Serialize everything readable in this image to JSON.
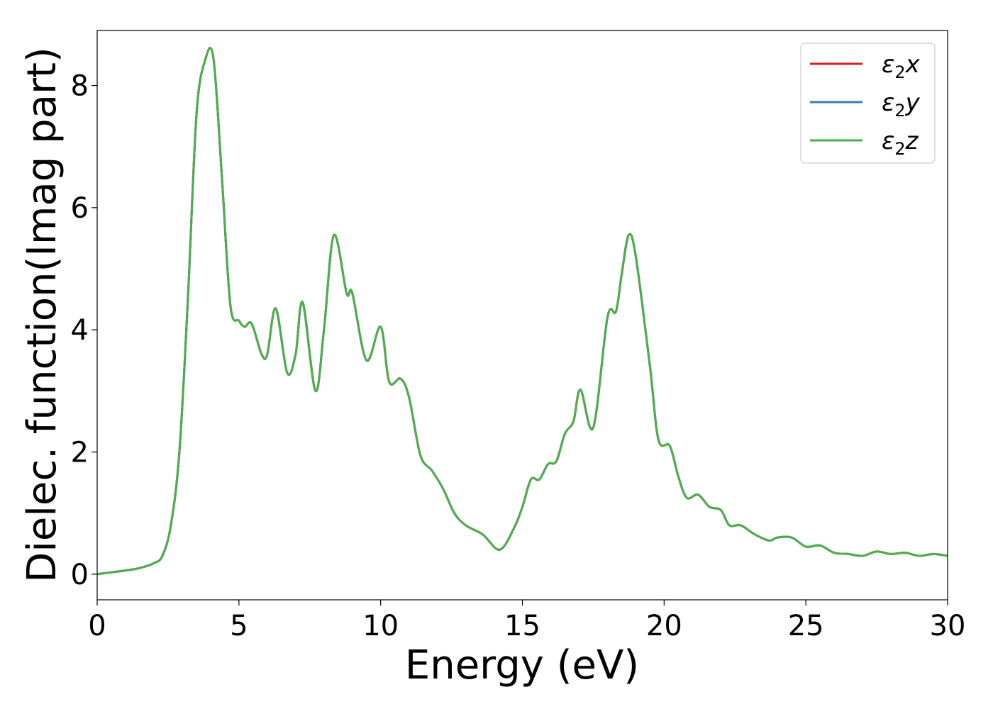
{
  "chart_data": {
    "type": "line",
    "title": "",
    "xlabel": "Energy (eV)",
    "ylabel": "Dielec. function(Imag part)",
    "xlim": [
      0,
      30
    ],
    "ylim": [
      -0.42,
      8.9
    ],
    "xticks": [
      0,
      5,
      10,
      15,
      20,
      25,
      30
    ],
    "yticks": [
      0,
      2,
      4,
      6,
      8
    ],
    "grid": false,
    "legend_position": "top-right",
    "x": [
      0,
      0.5,
      1,
      1.5,
      2,
      2.3,
      2.6,
      2.9,
      3.2,
      3.5,
      3.8,
      4.1,
      4.4,
      4.7,
      5.0,
      5.2,
      5.45,
      5.8,
      6.0,
      6.3,
      6.7,
      7.0,
      7.25,
      7.7,
      8.0,
      8.35,
      8.8,
      9.0,
      9.5,
      10.0,
      10.3,
      10.7,
      11.0,
      11.4,
      11.8,
      12.2,
      12.6,
      13.0,
      13.6,
      14.2,
      14.7,
      15.0,
      15.3,
      15.6,
      15.9,
      16.2,
      16.5,
      16.8,
      17.05,
      17.5,
      18.0,
      18.3,
      18.5,
      18.75,
      19.0,
      19.5,
      19.8,
      20.2,
      20.5,
      20.8,
      21.2,
      21.6,
      22.0,
      22.3,
      22.7,
      23.2,
      23.7,
      24.0,
      24.5,
      25.0,
      25.5,
      26.0,
      26.5,
      27.0,
      27.5,
      28.0,
      28.5,
      29.0,
      29.5,
      30.0
    ],
    "series": [
      {
        "name": "ε₂x",
        "label_base": "ε",
        "label_sub": "2",
        "label_var": "x",
        "color": "#e41a1c",
        "values": [
          0.0,
          0.03,
          0.06,
          0.1,
          0.18,
          0.3,
          0.8,
          2.0,
          4.5,
          7.5,
          8.4,
          8.45,
          6.5,
          4.4,
          4.15,
          4.05,
          4.1,
          3.6,
          3.6,
          4.35,
          3.3,
          3.6,
          4.45,
          3.0,
          4.0,
          5.55,
          4.6,
          4.6,
          3.5,
          4.05,
          3.15,
          3.2,
          2.9,
          1.95,
          1.7,
          1.4,
          1.0,
          0.8,
          0.65,
          0.4,
          0.75,
          1.1,
          1.55,
          1.55,
          1.8,
          1.85,
          2.3,
          2.5,
          3.02,
          2.4,
          4.2,
          4.3,
          4.9,
          5.55,
          5.2,
          3.4,
          2.2,
          2.1,
          1.6,
          1.25,
          1.3,
          1.1,
          1.05,
          0.8,
          0.8,
          0.65,
          0.55,
          0.6,
          0.6,
          0.45,
          0.47,
          0.35,
          0.33,
          0.3,
          0.37,
          0.33,
          0.35,
          0.3,
          0.33,
          0.3
        ]
      },
      {
        "name": "ε₂y",
        "label_base": "ε",
        "label_sub": "2",
        "label_var": "y",
        "color": "#377eb8",
        "values": [
          0.0,
          0.03,
          0.06,
          0.1,
          0.18,
          0.3,
          0.8,
          2.0,
          4.5,
          7.5,
          8.4,
          8.45,
          6.5,
          4.4,
          4.15,
          4.05,
          4.1,
          3.6,
          3.6,
          4.35,
          3.3,
          3.6,
          4.45,
          3.0,
          4.0,
          5.55,
          4.6,
          4.6,
          3.5,
          4.05,
          3.15,
          3.2,
          2.9,
          1.95,
          1.7,
          1.4,
          1.0,
          0.8,
          0.65,
          0.4,
          0.75,
          1.1,
          1.55,
          1.55,
          1.8,
          1.85,
          2.3,
          2.5,
          3.02,
          2.4,
          4.2,
          4.3,
          4.9,
          5.55,
          5.2,
          3.4,
          2.2,
          2.1,
          1.6,
          1.25,
          1.3,
          1.1,
          1.05,
          0.8,
          0.8,
          0.65,
          0.55,
          0.6,
          0.6,
          0.45,
          0.47,
          0.35,
          0.33,
          0.3,
          0.37,
          0.33,
          0.35,
          0.3,
          0.33,
          0.3
        ]
      },
      {
        "name": "ε₂z",
        "label_base": "ε",
        "label_sub": "2",
        "label_var": "z",
        "color": "#4daf4a",
        "values": [
          0.0,
          0.03,
          0.06,
          0.1,
          0.18,
          0.3,
          0.8,
          2.0,
          4.5,
          7.5,
          8.4,
          8.45,
          6.5,
          4.4,
          4.15,
          4.05,
          4.1,
          3.6,
          3.6,
          4.35,
          3.3,
          3.6,
          4.45,
          3.0,
          4.0,
          5.55,
          4.6,
          4.6,
          3.5,
          4.05,
          3.15,
          3.2,
          2.9,
          1.95,
          1.7,
          1.4,
          1.0,
          0.8,
          0.65,
          0.4,
          0.75,
          1.1,
          1.55,
          1.55,
          1.8,
          1.85,
          2.3,
          2.5,
          3.02,
          2.4,
          4.2,
          4.3,
          4.9,
          5.55,
          5.2,
          3.4,
          2.2,
          2.1,
          1.6,
          1.25,
          1.3,
          1.1,
          1.05,
          0.8,
          0.8,
          0.65,
          0.55,
          0.6,
          0.6,
          0.45,
          0.47,
          0.35,
          0.33,
          0.3,
          0.37,
          0.33,
          0.35,
          0.3,
          0.33,
          0.3
        ]
      }
    ]
  }
}
